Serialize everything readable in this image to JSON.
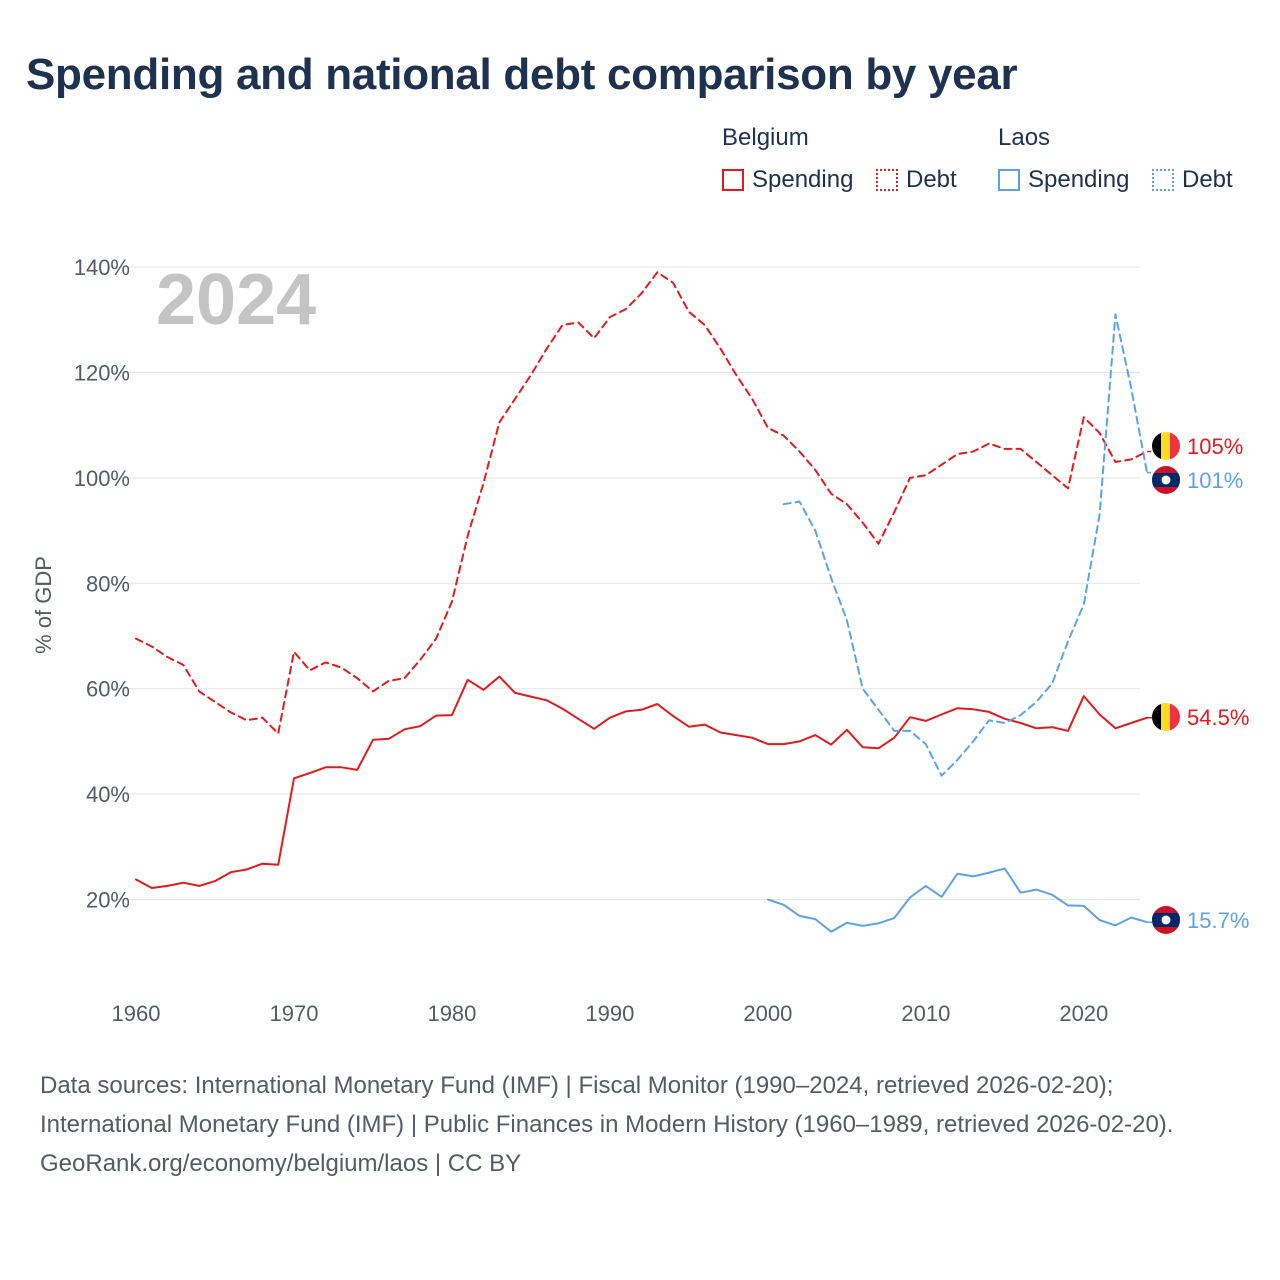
{
  "title": "Spending and national debt comparison by year",
  "legend": {
    "groups": [
      {
        "name": "Belgium",
        "color": "#e41a1c",
        "items": [
          {
            "label": "Spending",
            "style": "solid"
          },
          {
            "label": "Debt",
            "style": "dotted"
          }
        ]
      },
      {
        "name": "Laos",
        "color": "#5ba3e6",
        "items": [
          {
            "label": "Spending",
            "style": "solid"
          },
          {
            "label": "Debt",
            "style": "dotted"
          }
        ]
      }
    ]
  },
  "chart_data": {
    "type": "line",
    "title": "Spending and national debt comparison by year",
    "year_label": "2024",
    "xlabel": "",
    "ylabel": "% of GDP",
    "xlim": [
      1960,
      2024
    ],
    "ylim": [
      0,
      140
    ],
    "x_ticks": [
      1960,
      1970,
      1980,
      1990,
      2000,
      2010,
      2020
    ],
    "y_ticks": [
      20,
      40,
      60,
      80,
      100,
      120,
      140
    ],
    "y_tick_labels": [
      "20%",
      "40%",
      "60%",
      "80%",
      "100%",
      "120%",
      "140%"
    ],
    "grid": true,
    "series": [
      {
        "name": "Belgium Debt",
        "country": "Belgium",
        "measure": "Debt",
        "color": "#e41a1c",
        "dash": "dashed",
        "end_label": "105%",
        "x": [
          1960,
          1961,
          1962,
          1963,
          1964,
          1965,
          1966,
          1967,
          1968,
          1969,
          1970,
          1971,
          1972,
          1973,
          1974,
          1975,
          1976,
          1977,
          1978,
          1979,
          1980,
          1981,
          1982,
          1983,
          1984,
          1985,
          1986,
          1987,
          1988,
          1989,
          1990,
          1991,
          1992,
          1993,
          1994,
          1995,
          1996,
          1997,
          1998,
          1999,
          2000,
          2001,
          2002,
          2003,
          2004,
          2005,
          2006,
          2007,
          2008,
          2009,
          2010,
          2011,
          2012,
          2013,
          2014,
          2015,
          2016,
          2017,
          2018,
          2019,
          2020,
          2021,
          2022,
          2023,
          2024
        ],
        "values": [
          69.5,
          68,
          66,
          64.5,
          59.5,
          57.5,
          55.5,
          54,
          54.5,
          51.5,
          67,
          63.5,
          65,
          64,
          62,
          59.5,
          61.5,
          62,
          65.5,
          69.5,
          76.5,
          89,
          99,
          110.5,
          115,
          119.5,
          124.5,
          129,
          129.5,
          126.5,
          130.5,
          132,
          135,
          139,
          137,
          131.5,
          129,
          124.5,
          119.5,
          115,
          109.5,
          108,
          105,
          101.5,
          97,
          95,
          91.5,
          87.5,
          93.5,
          100,
          100.5,
          102.5,
          104.5,
          105,
          106.5,
          105.5,
          105.5,
          103,
          100.5,
          98,
          111.5,
          108.5,
          103,
          103.5,
          105
        ]
      },
      {
        "name": "Belgium Spending",
        "country": "Belgium",
        "measure": "Spending",
        "color": "#e41a1c",
        "dash": "solid",
        "end_label": "54.5%",
        "x": [
          1960,
          1961,
          1962,
          1963,
          1964,
          1965,
          1966,
          1967,
          1968,
          1969,
          1970,
          1971,
          1972,
          1973,
          1974,
          1975,
          1976,
          1977,
          1978,
          1979,
          1980,
          1981,
          1982,
          1983,
          1984,
          1985,
          1986,
          1987,
          1988,
          1989,
          1990,
          1991,
          1992,
          1993,
          1994,
          1995,
          1996,
          1997,
          1998,
          1999,
          2000,
          2001,
          2002,
          2003,
          2004,
          2005,
          2006,
          2007,
          2008,
          2009,
          2010,
          2011,
          2012,
          2013,
          2014,
          2015,
          2016,
          2017,
          2018,
          2019,
          2020,
          2021,
          2022,
          2023,
          2024
        ],
        "values": [
          23.8,
          22.2,
          22.6,
          23.2,
          22.6,
          23.5,
          25.2,
          25.7,
          26.8,
          26.6,
          43,
          44,
          45.1,
          45.1,
          44.6,
          50.3,
          50.5,
          52.3,
          52.9,
          54.9,
          55,
          61.7,
          59.8,
          62.3,
          59.2,
          58.5,
          57.8,
          56.2,
          54.3,
          52.4,
          54.5,
          55.7,
          56,
          57.1,
          54.8,
          52.8,
          53.2,
          51.7,
          51.2,
          50.7,
          49.5,
          49.5,
          50,
          51.2,
          49.4,
          52.2,
          48.9,
          48.7,
          50.7,
          54.6,
          53.9,
          55.1,
          56.3,
          56.1,
          55.6,
          54.3,
          53.5,
          52.5,
          52.7,
          52,
          58.6,
          55.1,
          52.5,
          53.5,
          54.5
        ]
      },
      {
        "name": "Laos Debt",
        "country": "Laos",
        "measure": "Debt",
        "color": "#5ba3e6",
        "dash": "dashed",
        "end_label": "101%",
        "x": [
          2001,
          2002,
          2003,
          2004,
          2005,
          2006,
          2007,
          2008,
          2009,
          2010,
          2011,
          2012,
          2013,
          2014,
          2015,
          2016,
          2017,
          2018,
          2019,
          2020,
          2021,
          2022,
          2023,
          2024
        ],
        "values": [
          95,
          95.5,
          90,
          81,
          73,
          60,
          56,
          52,
          52,
          49.5,
          43.5,
          46.5,
          50,
          54,
          53.5,
          55,
          57.5,
          61,
          69,
          76,
          93,
          131,
          117,
          101
        ]
      },
      {
        "name": "Laos Spending",
        "country": "Laos",
        "measure": "Spending",
        "color": "#5ba3e6",
        "dash": "solid",
        "end_label": "15.7%",
        "x": [
          2000,
          2001,
          2002,
          2003,
          2004,
          2005,
          2006,
          2007,
          2008,
          2009,
          2010,
          2011,
          2012,
          2013,
          2014,
          2015,
          2016,
          2017,
          2018,
          2019,
          2020,
          2021,
          2022,
          2023,
          2024
        ],
        "values": [
          20,
          19,
          16.9,
          16.3,
          13.9,
          15.6,
          15,
          15.5,
          16.5,
          20.4,
          22.6,
          20.5,
          24.9,
          24.4,
          25.1,
          25.9,
          21.3,
          21.9,
          20.9,
          18.9,
          18.8,
          16.1,
          15.1,
          16.6,
          15.7
        ]
      }
    ]
  },
  "footer": {
    "sources": "Data sources: International Monetary Fund (IMF) | Fiscal Monitor (1990–2024, retrieved 2026-02-20); International Monetary Fund (IMF) | Public Finances in Modern History (1960–1989, retrieved 2026-02-20).",
    "credit": "GeoRank.org/economy/belgium/laos | CC BY"
  }
}
